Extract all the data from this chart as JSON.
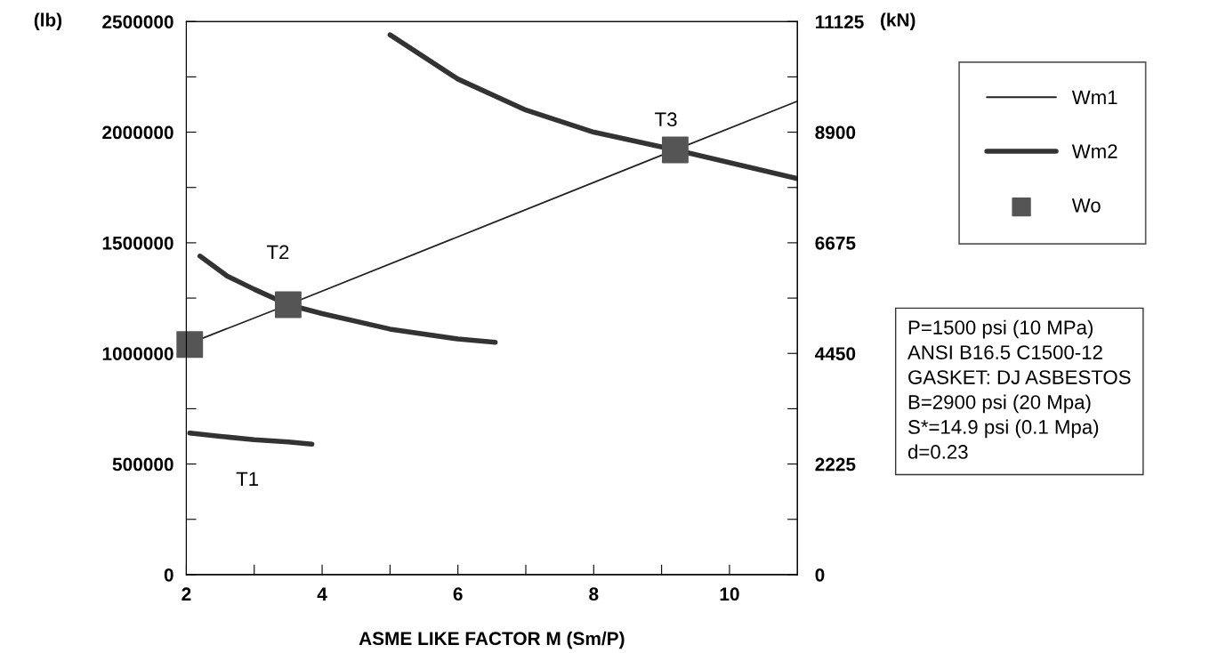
{
  "chart_data": {
    "type": "line",
    "xlabel": "ASME LIKE FACTOR M (Sm/P)",
    "ylabel": "(lb)",
    "y2label": "(kN)",
    "xlim": [
      2,
      11
    ],
    "xticks": [
      2,
      {
        "value": 3,
        "label": null
      },
      4,
      {
        "value": 5,
        "label": null
      },
      6,
      {
        "value": 7,
        "label": null
      },
      8,
      {
        "value": 9,
        "label": null
      },
      10
    ],
    "ylim": [
      0,
      2500000
    ],
    "yticks": [
      0,
      {
        "value": 250000,
        "label": null
      },
      500000,
      {
        "value": 750000,
        "label": null
      },
      1000000,
      {
        "value": 1250000,
        "label": null
      },
      1500000,
      {
        "value": 1750000,
        "label": null
      },
      2000000,
      {
        "value": 2250000,
        "label": null
      },
      2500000
    ],
    "y2lim": [
      0,
      11125
    ],
    "y2ticks": [
      0,
      {
        "value": 1112.5,
        "label": null
      },
      2225,
      {
        "value": 3337.5,
        "label": null
      },
      4450,
      {
        "value": 5562.5,
        "label": null
      },
      6675,
      {
        "value": 7787.5,
        "label": null
      },
      8900,
      {
        "value": 10012.5,
        "label": null
      },
      11125
    ],
    "legend": "right",
    "grid": false,
    "series": [
      {
        "name": "Wm1",
        "color": "#222222",
        "line_style": "solid",
        "x": [
          2,
          3.5,
          9.2,
          11
        ],
        "values": [
          1040000,
          1220000,
          1920000,
          2140000
        ]
      },
      {
        "name": "Wm2",
        "color": "#333333",
        "line_style": "solid",
        "x": [
          2.05,
          2.5,
          3,
          3.5,
          3.85
        ],
        "values": [
          640000,
          625000,
          610000,
          600000,
          590000
        ]
      },
      {
        "color": "#333333",
        "line_style": "solid",
        "x": [
          2.2,
          2.6,
          3,
          3.5,
          4,
          5,
          6,
          6.55
        ],
        "values": [
          1440000,
          1350000,
          1290000,
          1220000,
          1180000,
          1110000,
          1065000,
          1050000
        ]
      },
      {
        "color": "#333333",
        "line_style": "solid",
        "x": [
          5,
          6,
          7,
          8,
          9.2,
          11
        ],
        "values": [
          2440000,
          2240000,
          2100000,
          2000000,
          1920000,
          1790000
        ]
      },
      {
        "name": "Wo",
        "type": "scatter",
        "color": "#555555",
        "marker": "square",
        "x": [
          2.05,
          3.5,
          9.2
        ],
        "values": [
          1040000,
          1220000,
          1920000
        ]
      }
    ],
    "annotations": [
      "T1",
      "T2",
      "T3",
      "P=1500 psi (10 MPa)\nANSI B16.5 C1500-12\nGASKET: DJ ASBESTOS\nB=2900 psi (20 Mpa)\nS*=14.9 psi (0.1 Mpa)\nd=0.23"
    ]
  }
}
